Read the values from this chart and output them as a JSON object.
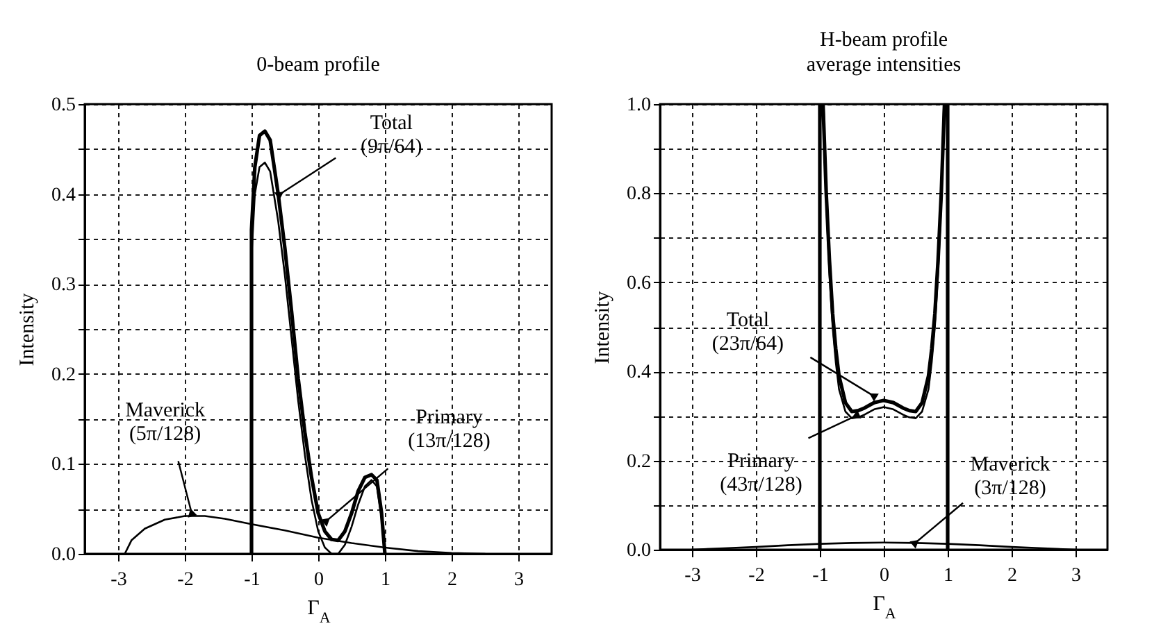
{
  "chart_data": [
    {
      "type": "line",
      "title": "0-beam profile",
      "xlabel": "Γ$_{A}$",
      "ylabel": "Intensity",
      "xlim": [
        -3.5,
        3.5
      ],
      "ylim": [
        0,
        0.5
      ],
      "xticks": [
        -3,
        -2,
        -1,
        0,
        1,
        2,
        3
      ],
      "yticks": [
        {
          "value": 0,
          "label": "0.0"
        },
        {
          "value": 0.05,
          "label": null
        },
        0.1,
        {
          "value": 0.15,
          "label": null
        },
        0.2,
        {
          "value": 0.25,
          "label": null
        },
        0.3,
        {
          "value": 0.35,
          "label": null
        },
        0.4,
        {
          "value": 0.45,
          "label": null
        },
        0.5
      ],
      "grid": true,
      "line_style": "solid",
      "marker": "none",
      "series": [
        {
          "color": "#000000",
          "x": [
            -1,
            -1,
            -0.95,
            -0.88,
            -0.8,
            -0.72,
            -0.6,
            -0.5,
            -0.4,
            -0.3,
            -0.2,
            -0.1,
            0,
            0.1,
            0.2,
            0.3,
            0.4,
            0.5,
            0.6,
            0.7,
            0.8,
            0.88,
            0.95,
            1
          ],
          "values": [
            0,
            0.36,
            0.43,
            0.465,
            0.47,
            0.46,
            0.4,
            0.34,
            0.27,
            0.195,
            0.135,
            0.085,
            0.045,
            0.025,
            0.016,
            0.015,
            0.025,
            0.045,
            0.07,
            0.085,
            0.088,
            0.082,
            0.045,
            0
          ]
        },
        {
          "color": "#000000",
          "x": [
            -1,
            -1,
            -0.95,
            -0.88,
            -0.8,
            -0.72,
            -0.6,
            -0.5,
            -0.4,
            -0.3,
            -0.2,
            -0.1,
            0,
            0.1,
            0.2,
            0.3,
            0.4,
            0.5,
            0.6,
            0.7,
            0.8,
            0.88,
            0.95,
            1
          ],
          "values": [
            0,
            0.33,
            0.4,
            0.43,
            0.435,
            0.425,
            0.37,
            0.31,
            0.24,
            0.17,
            0.11,
            0.06,
            0.025,
            0.007,
            0,
            0,
            0.01,
            0.03,
            0.055,
            0.075,
            0.082,
            0.075,
            0.04,
            0
          ]
        },
        {
          "color": "#000000",
          "x": [
            -2.9,
            -2.8,
            -2.6,
            -2.3,
            -2,
            -1.7,
            -1.4,
            -1,
            -0.5,
            0,
            0.5,
            1,
            1.5,
            2,
            2.5
          ],
          "values": [
            0,
            0.015,
            0.028,
            0.038,
            0.042,
            0.042,
            0.039,
            0.033,
            0.026,
            0.018,
            0.012,
            0.007,
            0.003,
            0.001,
            0
          ]
        }
      ],
      "annotations": [
        {
          "text": "Total\n(9π/64)",
          "x": -0.57,
          "y": 0.4
        },
        {
          "text": "Primary\n(13π/128)",
          "x": 0.13,
          "y": 0.037
        },
        {
          "text": "Maverick\n(5π/128)",
          "x": -1.9,
          "y": 0.046
        }
      ]
    },
    {
      "type": "line",
      "title": "H-beam profile\naverage intensities",
      "xlabel": "Γ$_{A}$",
      "ylabel": "Intensity",
      "xlim": [
        -3.5,
        3.5
      ],
      "ylim": [
        0,
        1.0
      ],
      "xticks": [
        -3,
        -2,
        -1,
        0,
        1,
        2,
        3
      ],
      "yticks": [
        {
          "value": 0,
          "label": "0.0"
        },
        {
          "value": 0.1,
          "label": null
        },
        0.2,
        {
          "value": 0.3,
          "label": null
        },
        0.4,
        {
          "value": 0.5,
          "label": null
        },
        0.6,
        {
          "value": 0.7,
          "label": null
        },
        0.8,
        {
          "value": 0.9,
          "label": null
        },
        {
          "value": 1,
          "label": "1.0"
        }
      ],
      "grid": true,
      "line_style": "solid",
      "marker": "none",
      "series": [
        {
          "color": "#000000",
          "x": [
            -1,
            -1,
            null,
            -0.95,
            -0.9,
            -0.85,
            -0.8,
            -0.75,
            -0.7,
            -0.6,
            -0.5,
            -0.4,
            -0.3,
            -0.15,
            0,
            0.15,
            0.3,
            0.4,
            0.5,
            0.6,
            0.7,
            0.75,
            0.8,
            0.85,
            0.9,
            0.95,
            null,
            1,
            1
          ],
          "values": [
            0,
            1,
            null,
            1,
            0.8,
            0.65,
            0.53,
            0.45,
            0.39,
            0.33,
            0.31,
            0.312,
            0.318,
            0.33,
            0.335,
            0.33,
            0.318,
            0.312,
            0.31,
            0.33,
            0.39,
            0.45,
            0.53,
            0.65,
            0.8,
            1,
            null,
            1,
            0
          ]
        },
        {
          "color": "#000000",
          "x": [
            -0.94,
            -0.9,
            -0.85,
            -0.8,
            -0.75,
            -0.7,
            -0.6,
            -0.5,
            -0.4,
            -0.3,
            -0.15,
            0,
            0.15,
            0.3,
            0.4,
            0.5,
            0.6,
            0.7,
            0.75,
            0.8,
            0.85,
            0.9,
            0.94
          ],
          "values": [
            1,
            0.78,
            0.62,
            0.5,
            0.42,
            0.36,
            0.31,
            0.295,
            0.297,
            0.303,
            0.315,
            0.32,
            0.315,
            0.303,
            0.297,
            0.295,
            0.31,
            0.36,
            0.42,
            0.5,
            0.62,
            0.78,
            1
          ]
        },
        {
          "color": "#000000",
          "x": [
            -3,
            -2.5,
            -2,
            -1.5,
            -1,
            -0.5,
            0,
            0.5,
            1,
            1.5,
            2,
            2.5,
            3
          ],
          "values": [
            0,
            0.003,
            0.006,
            0.01,
            0.013,
            0.015,
            0.016,
            0.015,
            0.013,
            0.01,
            0.006,
            0.003,
            0
          ]
        }
      ],
      "annotations": [
        {
          "text": "Total\n(23π/64)",
          "x": -0.17,
          "y": 0.346
        },
        {
          "text": "Primary\n(43π/128)",
          "x": -0.44,
          "y": 0.3
        },
        {
          "text": "Maverick\n(3π/128)",
          "x": 0.5,
          "y": 0.016
        }
      ]
    }
  ]
}
